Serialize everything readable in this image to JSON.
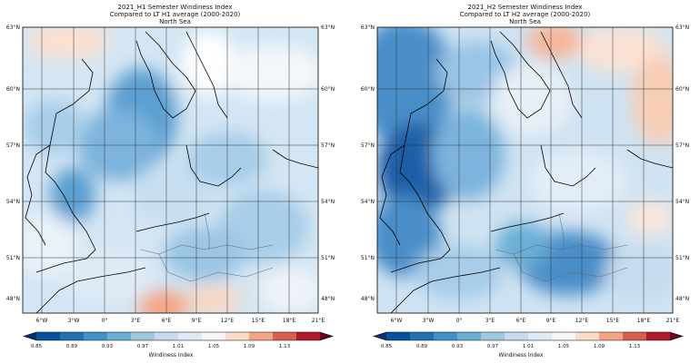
{
  "panels": [
    {
      "title1": "2021_H1 Semester Windiness Index",
      "title2": "Compared to LT H1 average (2000-2020)",
      "title3": "North Sea"
    },
    {
      "title1": "2021_H2 Semester Windiness Index",
      "title2": "Compared to LT H2 average (2000-2020)",
      "title3": "North Sea"
    }
  ],
  "lat_labels": [
    "63°N",
    "60°N",
    "57°N",
    "54°N",
    "51°N",
    "48°N"
  ],
  "lon_labels": [
    "6°W",
    "3°W",
    "0°",
    "3°E",
    "6°E",
    "9°E",
    "12°E",
    "15°E",
    "18°E",
    "21°E"
  ],
  "colorbar": {
    "label": "Windiness Index",
    "ticks": [
      "0.85",
      "0.89",
      "0.93",
      "0.97",
      "1.01",
      "1.05",
      "1.09",
      "1.13"
    ],
    "colors": [
      "#08306b",
      "#08519c",
      "#2171b5",
      "#4292c6",
      "#6baed6",
      "#9ecae1",
      "#c6dbef",
      "#deebf7",
      "#f7f7f7",
      "#fddbc7",
      "#f4a582",
      "#d6604d",
      "#b2182b",
      "#67001f"
    ]
  }
}
